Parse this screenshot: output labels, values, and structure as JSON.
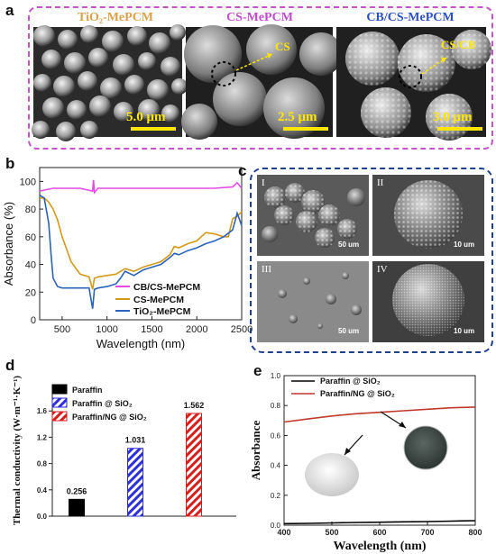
{
  "panels": {
    "a": {
      "label": "a",
      "titles": [
        "TiO₂-MePCM",
        "CS-MePCM",
        "CB/CS-MePCM"
      ],
      "title_colors": [
        "#d9a24a",
        "#c34bd0",
        "#2c4fc4"
      ],
      "scale_bars": [
        "5.0 μm",
        "2.5 μm",
        "3.0 μm"
      ],
      "annotations": [
        "CS",
        "CS/CB"
      ]
    },
    "b": {
      "label": "b"
    },
    "c": {
      "label": "c",
      "roman": [
        "I",
        "II",
        "III",
        "IV"
      ],
      "scales": [
        "50 um",
        "10 um",
        "50 um",
        "10 um"
      ]
    },
    "d": {
      "label": "d"
    },
    "e": {
      "label": "e"
    }
  },
  "chart_data": [
    {
      "id": "b",
      "type": "line",
      "xlabel": "Wavelength (nm)",
      "ylabel": "Absorbance (%)",
      "xlim": [
        250,
        2500
      ],
      "ylim": [
        0,
        110
      ],
      "xticks": [
        500,
        1000,
        1500,
        2000,
        2500
      ],
      "yticks": [
        0,
        20,
        40,
        60,
        80,
        100
      ],
      "legend": "bottom-right",
      "series": [
        {
          "name": "CB/CS-MePCM",
          "color": "#e34be3",
          "x": [
            250,
            400,
            700,
            840,
            850,
            860,
            900,
            1200,
            1500,
            1800,
            2000,
            2200,
            2400,
            2450,
            2500
          ],
          "y": [
            93,
            95,
            95,
            93,
            101,
            92,
            95,
            95,
            95,
            95,
            95,
            95,
            96,
            99,
            95
          ]
        },
        {
          "name": "CS-MePCM",
          "color": "#d49a17",
          "x": [
            250,
            300,
            350,
            400,
            450,
            500,
            600,
            700,
            800,
            840,
            860,
            900,
            1000,
            1100,
            1200,
            1300,
            1400,
            1500,
            1600,
            1700,
            1750,
            1800,
            1900,
            2000,
            2100,
            2200,
            2300,
            2350,
            2400,
            2450,
            2500
          ],
          "y": [
            88,
            88,
            85,
            80,
            72,
            60,
            42,
            33,
            31,
            22,
            30,
            31,
            32,
            33,
            37,
            35,
            38,
            40,
            42,
            47,
            53,
            52,
            55,
            57,
            63,
            62,
            60,
            60,
            73,
            75,
            78
          ]
        },
        {
          "name": "TiO₂-MePCM",
          "color": "#2a63b8",
          "x": [
            250,
            300,
            350,
            380,
            400,
            450,
            500,
            600,
            700,
            800,
            840,
            860,
            900,
            1000,
            1100,
            1150,
            1200,
            1300,
            1400,
            1500,
            1600,
            1700,
            1750,
            1800,
            1900,
            2000,
            2100,
            2200,
            2300,
            2400,
            2450,
            2500
          ],
          "y": [
            90,
            88,
            70,
            45,
            30,
            24,
            23,
            23,
            23,
            23,
            8,
            22,
            23,
            24,
            26,
            30,
            35,
            32,
            36,
            38,
            40,
            45,
            48,
            47,
            50,
            52,
            55,
            57,
            60,
            65,
            77,
            68
          ]
        }
      ]
    },
    {
      "id": "d",
      "type": "bar",
      "ylabel": "Thermal conductivity (W·m⁻¹·K⁻¹)",
      "ylim": [
        0,
        2.0
      ],
      "yticks": [
        0.0,
        0.4,
        0.8,
        1.2,
        1.6
      ],
      "legend": "top-left",
      "categories": [
        "Paraffin",
        "Paraffin @ SiO₂",
        "Paraffin/NG @ SiO₂"
      ],
      "values": [
        0.256,
        1.031,
        1.562
      ],
      "value_labels": [
        "0.256",
        "1.031",
        "1.562"
      ],
      "colors": [
        "#000000",
        "#2d2fd8",
        "#d81d1d"
      ],
      "patterns": [
        "solid",
        "hatch",
        "hatch"
      ]
    },
    {
      "id": "e",
      "type": "line",
      "xlabel": "Wavelength (nm)",
      "ylabel": "Absorbance",
      "xlim": [
        400,
        800
      ],
      "ylim": [
        0,
        1.0
      ],
      "xticks": [
        400,
        500,
        600,
        700,
        800
      ],
      "yticks": [
        0.0,
        0.2,
        0.4,
        0.6,
        0.8,
        1.0
      ],
      "legend": "top-left",
      "series": [
        {
          "name": "Paraffin @ SiO₂",
          "color": "#000000",
          "x": [
            400,
            450,
            500,
            550,
            600,
            650,
            700,
            750,
            800
          ],
          "y": [
            0.01,
            0.012,
            0.015,
            0.018,
            0.02,
            0.022,
            0.024,
            0.027,
            0.03
          ]
        },
        {
          "name": "Paraffin/NG @ SiO₂",
          "color": "#c0392b",
          "x": [
            400,
            450,
            500,
            550,
            600,
            650,
            700,
            750,
            800
          ],
          "y": [
            0.69,
            0.71,
            0.73,
            0.745,
            0.755,
            0.765,
            0.775,
            0.785,
            0.79
          ]
        }
      ]
    }
  ]
}
